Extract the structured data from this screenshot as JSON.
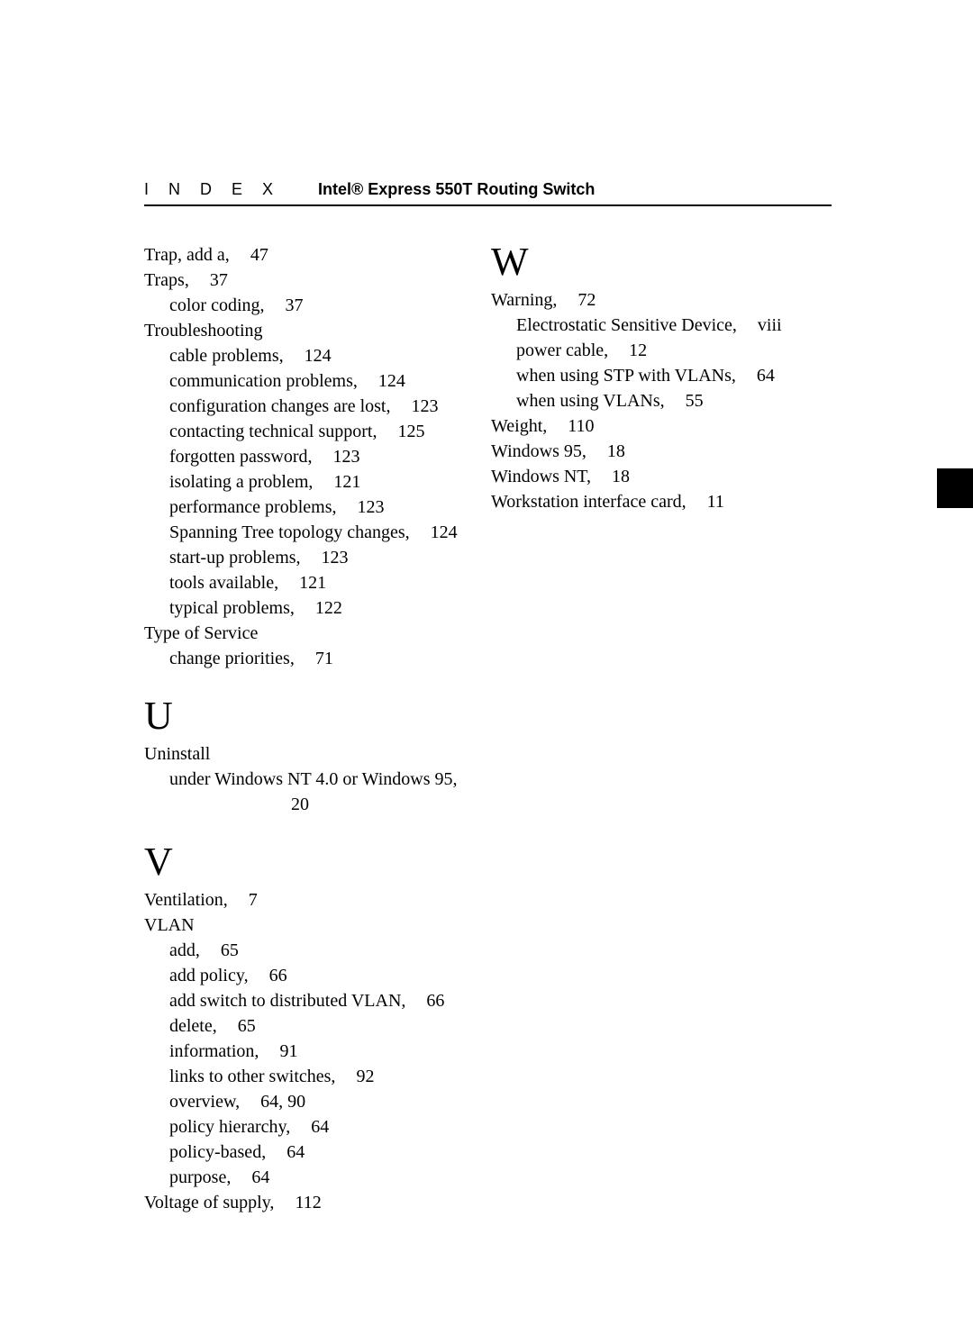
{
  "header": {
    "index_word": "INDEX",
    "title": "Intel® Express 550T Routing Switch"
  },
  "colors": {
    "background": "#ffffff",
    "text": "#000000",
    "rule": "#000000",
    "tab": "#000000"
  },
  "left": {
    "t": {
      "trap_add_a": "Trap, add a,",
      "trap_add_a_n": "47",
      "traps": "Traps,",
      "traps_n": "37",
      "color_coding": "color coding,",
      "color_coding_n": "37",
      "troubleshooting": "Troubleshooting",
      "cable_problems": "cable problems,",
      "cable_problems_n": "124",
      "comm_problems": "communication problems,",
      "comm_problems_n": "124",
      "config_lost": "configuration changes are lost,",
      "config_lost_n": "123",
      "tech_support": "contacting technical support,",
      "tech_support_n": "125",
      "forgot_pwd": "forgotten password,",
      "forgot_pwd_n": "123",
      "isolating": "isolating a problem,",
      "isolating_n": "121",
      "perf": "performance problems,",
      "perf_n": "123",
      "stp_changes": "Spanning Tree topology changes,",
      "stp_changes_n": "124",
      "startup": "start-up problems,",
      "startup_n": "123",
      "tools": "tools available,",
      "tools_n": "121",
      "typical": "typical problems,",
      "typical_n": "122",
      "tos": "Type of Service",
      "change_prio": "change priorities,",
      "change_prio_n": "71"
    },
    "u": {
      "letter": "U",
      "uninstall": "Uninstall",
      "under_win": "under Windows NT 4.0 or Windows 95,",
      "under_win_n": "20"
    },
    "v": {
      "letter": "V",
      "ventilation": "Ventilation,",
      "ventilation_n": "7",
      "vlan": "VLAN",
      "add": "add,",
      "add_n": "65",
      "add_policy": "add policy,",
      "add_policy_n": "66",
      "add_switch": "add switch to distributed VLAN,",
      "add_switch_n": "66",
      "delete": "delete,",
      "delete_n": "65",
      "information": "information,",
      "information_n": "91",
      "links": "links to other switches,",
      "links_n": "92",
      "overview": "overview,",
      "overview_n": "64, 90",
      "pol_hier": "policy hierarchy,",
      "pol_hier_n": "64",
      "pol_based": "policy-based,",
      "pol_based_n": "64",
      "purpose": "purpose,",
      "purpose_n": "64",
      "voltage": "Voltage of supply,",
      "voltage_n": "112"
    }
  },
  "right": {
    "w": {
      "letter": "W",
      "warning": "Warning,",
      "warning_n": "72",
      "esd": "Electrostatic Sensitive Device,",
      "esd_n": "viii",
      "power_cable": "power cable,",
      "power_cable_n": "12",
      "stp_vlans": "when using STP with VLANs,",
      "stp_vlans_n": "64",
      "using_vlans": "when using VLANs,",
      "using_vlans_n": "55",
      "weight": "Weight,",
      "weight_n": "110",
      "win95": "Windows 95,",
      "win95_n": "18",
      "winnt": "Windows NT,",
      "winnt_n": "18",
      "wic": "Workstation interface card,",
      "wic_n": "11"
    }
  }
}
